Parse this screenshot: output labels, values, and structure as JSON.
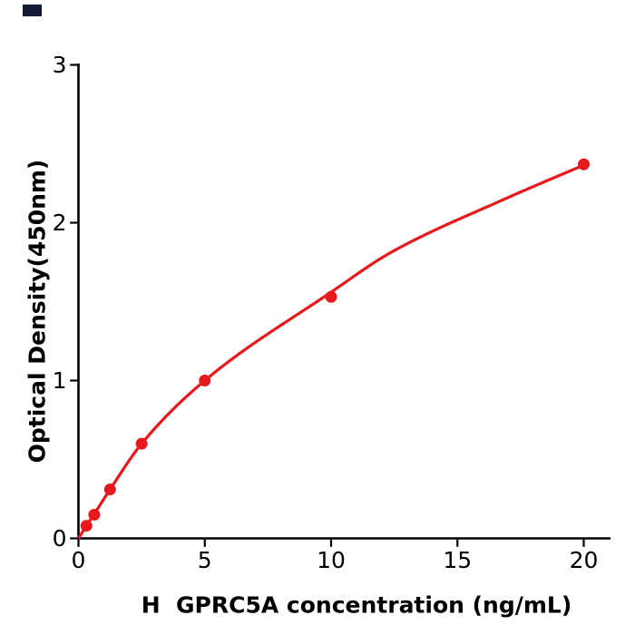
{
  "chart_data": {
    "type": "scatter",
    "title": "",
    "xlabel": "H  GPRC5A concentration (ng/mL)",
    "ylabel": "Optical Density(450nm)",
    "x": [
      0.313,
      0.625,
      1.25,
      2.5,
      5,
      10,
      20
    ],
    "y": [
      0.08,
      0.15,
      0.31,
      0.6,
      1.0,
      1.53,
      2.37
    ],
    "fit_curve_samples": {
      "x": [
        0,
        0.313,
        0.625,
        1.25,
        2.5,
        5,
        10,
        12.35,
        16.8,
        20
      ],
      "y": [
        0,
        0.08,
        0.155,
        0.31,
        0.6,
        1.0,
        1.56,
        1.81,
        2.145,
        2.365
      ]
    },
    "xlim": [
      0,
      21
    ],
    "ylim": [
      0,
      3
    ],
    "x_tick_values": [
      0,
      5,
      10,
      15,
      20
    ],
    "x_tick_labels": [
      "0",
      "5",
      "10",
      "15",
      "20"
    ],
    "y_tick_values": [
      0,
      1,
      2,
      3
    ],
    "y_tick_labels": [
      "0",
      "1",
      "2",
      "3"
    ],
    "grid": false,
    "legend": "none",
    "marker_color": "#e8191c",
    "line_color": "#e8191c",
    "axis_color": "#000000"
  },
  "decorations": {
    "corner_mark_color": "#151a35"
  }
}
